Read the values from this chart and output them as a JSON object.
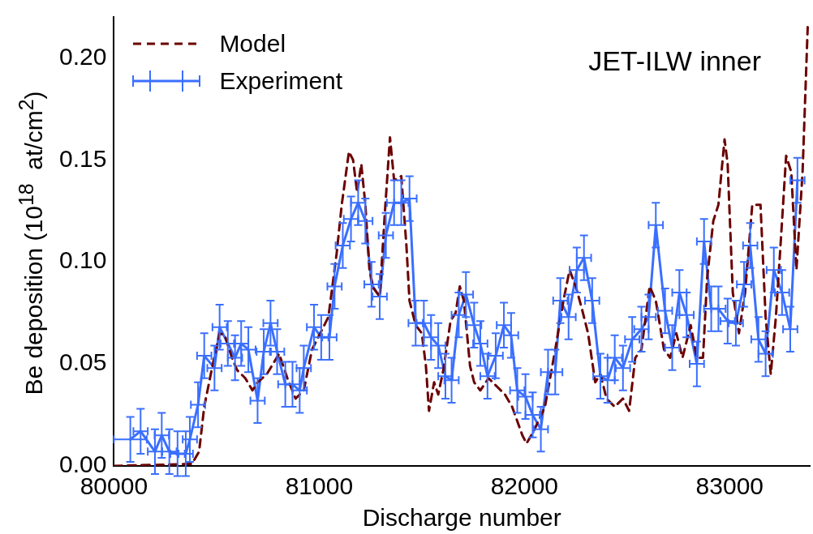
{
  "chart_data": {
    "type": "line",
    "xlabel": "Discharge number",
    "ylabel": "Be deposition (10$^{18}$  at/cm$^{2}$)",
    "annotations": [
      "JET-ILW inner"
    ],
    "xlim": [
      80000,
      83390
    ],
    "xticks": [
      80000,
      81000,
      82000,
      83000
    ],
    "ylim": [
      0,
      0.22
    ],
    "yticks": [
      {
        "value": 0,
        "label": "0.00"
      },
      {
        "value": 0.05,
        "label": "0.05"
      },
      {
        "value": 0.1,
        "label": "0.10"
      },
      {
        "value": 0.15,
        "label": "0.15"
      },
      {
        "value": 0.2,
        "label": "0.20"
      }
    ],
    "grid": false,
    "legend": "top left",
    "marker": "none",
    "series": [
      {
        "name": "Model",
        "color": "#6b0000",
        "line_style": "dashed",
        "x": [
          80000,
          80380,
          80415,
          80440,
          80480,
          80515,
          80540,
          80575,
          80600,
          80640,
          80675,
          80700,
          80745,
          80805,
          80845,
          80885,
          80925,
          80965,
          81005,
          81045,
          81085,
          81110,
          81145,
          81165,
          81185,
          81205,
          81225,
          81245,
          81265,
          81295,
          81320,
          81345,
          81365,
          81400,
          81425,
          81440,
          81470,
          81500,
          81520,
          81535,
          81560,
          81580,
          81605,
          81640,
          81665,
          81685,
          81705,
          81735,
          81755,
          81785,
          81825,
          81865,
          81905,
          81940,
          81990,
          82010,
          82045,
          82100,
          82150,
          82190,
          82220,
          82250,
          82280,
          82310,
          82345,
          82370,
          82400,
          82440,
          82480,
          82510,
          82540,
          82570,
          82610,
          82640,
          82680,
          82710,
          82740,
          82770,
          82810,
          82840,
          82870,
          82890,
          82920,
          82945,
          82975,
          82990,
          83015,
          83045,
          83075,
          83110,
          83150,
          83175,
          83200,
          83225,
          83245,
          83275,
          83300,
          83325,
          83355,
          83380
        ],
        "values": [
          0,
          0.001,
          0.007,
          0.029,
          0.049,
          0.065,
          0.064,
          0.053,
          0.047,
          0.043,
          0.037,
          0.041,
          0.045,
          0.055,
          0.043,
          0.033,
          0.037,
          0.057,
          0.065,
          0.073,
          0.104,
          0.128,
          0.154,
          0.15,
          0.134,
          0.148,
          0.128,
          0.096,
          0.087,
          0.083,
          0.124,
          0.161,
          0.14,
          0.142,
          0.108,
          0.081,
          0.069,
          0.065,
          0.049,
          0.027,
          0.041,
          0.035,
          0.047,
          0.071,
          0.075,
          0.088,
          0.081,
          0.049,
          0.041,
          0.037,
          0.043,
          0.039,
          0.035,
          0.029,
          0.015,
          0.011,
          0.017,
          0.029,
          0.057,
          0.081,
          0.096,
          0.088,
          0.077,
          0.065,
          0.041,
          0.045,
          0.033,
          0.029,
          0.033,
          0.027,
          0.053,
          0.057,
          0.088,
          0.081,
          0.057,
          0.053,
          0.065,
          0.053,
          0.069,
          0.053,
          0.053,
          0.092,
          0.12,
          0.128,
          0.16,
          0.148,
          0.085,
          0.065,
          0.085,
          0.128,
          0.128,
          0.073,
          0.045,
          0.073,
          0.104,
          0.152,
          0.144,
          0.096,
          0.144,
          0.215
        ]
      },
      {
        "name": "Experiment",
        "color": "#3a6fff",
        "line_style": "solid",
        "x": [
          80080,
          80130,
          80200,
          80233,
          80270,
          80310,
          80350,
          80370,
          80410,
          80440,
          80490,
          80515,
          80555,
          80590,
          80620,
          80655,
          80700,
          80730,
          80763,
          80795,
          80835,
          80870,
          80905,
          80925,
          80975,
          81010,
          81050,
          81075,
          81115,
          81155,
          81190,
          81225,
          81255,
          81295,
          81325,
          81365,
          81400,
          81440,
          81470,
          81510,
          81545,
          81580,
          81615,
          81645,
          81680,
          81715,
          81755,
          81785,
          81820,
          81860,
          81900,
          81935,
          81965,
          82005,
          82040,
          82080,
          82115,
          82150,
          82175,
          82215,
          82255,
          82290,
          82330,
          82370,
          82405,
          82440,
          82480,
          82525,
          82570,
          82605,
          82640,
          82685,
          82720,
          82755,
          82790,
          82840,
          82875,
          82910,
          82945,
          82990,
          83030,
          83070,
          83100,
          83140,
          83175,
          83215,
          83255,
          83295,
          83330
        ],
        "values": [
          0.013,
          0.017,
          0.007,
          0.015,
          0.007,
          0.006,
          0.006,
          0.013,
          0.03,
          0.054,
          0.048,
          0.068,
          0.06,
          0.053,
          0.06,
          0.057,
          0.032,
          0.056,
          0.07,
          0.056,
          0.04,
          0.04,
          0.037,
          0.048,
          0.068,
          0.063,
          0.063,
          0.088,
          0.108,
          0.121,
          0.129,
          0.12,
          0.089,
          0.083,
          0.113,
          0.129,
          0.129,
          0.131,
          0.07,
          0.07,
          0.063,
          0.059,
          0.044,
          0.042,
          0.074,
          0.084,
          0.069,
          0.06,
          0.044,
          0.054,
          0.069,
          0.064,
          0.037,
          0.034,
          0.025,
          0.018,
          0.046,
          0.046,
          0.081,
          0.073,
          0.096,
          0.102,
          0.081,
          0.044,
          0.042,
          0.053,
          0.048,
          0.062,
          0.067,
          0.073,
          0.118,
          0.076,
          0.058,
          0.085,
          0.074,
          0.05,
          0.11,
          0.077,
          0.077,
          0.071,
          0.07,
          0.089,
          0.108,
          0.062,
          0.055,
          0.096,
          0.085,
          0.067,
          0.14
        ],
        "errors": [
          0.011,
          0.011,
          0.011,
          0.011,
          0.011,
          0.011,
          0.011,
          0.011,
          0.011,
          0.011,
          0.011,
          0.011,
          0.011,
          0.011,
          0.011,
          0.011,
          0.011,
          0.011,
          0.011,
          0.011,
          0.011,
          0.011,
          0.011,
          0.011,
          0.011,
          0.011,
          0.011,
          0.011,
          0.011,
          0.011,
          0.011,
          0.011,
          0.011,
          0.011,
          0.011,
          0.011,
          0.011,
          0.011,
          0.011,
          0.011,
          0.011,
          0.011,
          0.011,
          0.011,
          0.011,
          0.011,
          0.011,
          0.011,
          0.011,
          0.011,
          0.011,
          0.011,
          0.011,
          0.011,
          0.011,
          0.011,
          0.011,
          0.011,
          0.011,
          0.011,
          0.011,
          0.011,
          0.011,
          0.011,
          0.011,
          0.011,
          0.011,
          0.011,
          0.011,
          0.011,
          0.011,
          0.011,
          0.011,
          0.011,
          0.011,
          0.011,
          0.011,
          0.011,
          0.011,
          0.011,
          0.011,
          0.011,
          0.011,
          0.011,
          0.011,
          0.011,
          0.011,
          0.011,
          0.011
        ],
        "xerrors": [
          80,
          35,
          35,
          35,
          35,
          35,
          35,
          35,
          35,
          35,
          35,
          35,
          35,
          35,
          35,
          35,
          35,
          35,
          35,
          35,
          35,
          35,
          35,
          35,
          35,
          35,
          35,
          35,
          35,
          35,
          35,
          35,
          35,
          35,
          35,
          35,
          35,
          35,
          35,
          35,
          35,
          35,
          35,
          35,
          35,
          35,
          35,
          35,
          35,
          35,
          35,
          35,
          35,
          35,
          35,
          35,
          35,
          35,
          35,
          35,
          35,
          35,
          35,
          35,
          35,
          35,
          35,
          35,
          35,
          35,
          35,
          35,
          35,
          35,
          35,
          35,
          35,
          35,
          35,
          35,
          35,
          35,
          35,
          35,
          35,
          35,
          35,
          35,
          35
        ]
      }
    ]
  }
}
